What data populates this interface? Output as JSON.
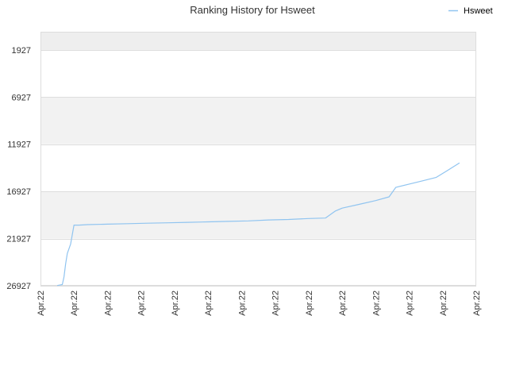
{
  "chart_data": {
    "type": "line",
    "title": "Ranking History for Hsweet",
    "xlabel": "",
    "ylabel": "",
    "y_reversed": true,
    "ylim": [
      26927,
      0
    ],
    "y_ticks": [
      1927,
      6927,
      11927,
      16927,
      21927,
      26927
    ],
    "y_tick_labels": [
      "1927",
      "6927",
      "11927",
      "16927",
      "21927",
      "26927"
    ],
    "x_tick_labels": [
      "Apr.22",
      "Apr.22",
      "Apr.22",
      "Apr.22",
      "Apr.22",
      "Apr.22",
      "Apr.22",
      "Apr.22",
      "Apr.22",
      "Apr.22",
      "Apr.22",
      "Apr.22",
      "Apr.22",
      "Apr.22"
    ],
    "grid": true,
    "legend": {
      "position": "top-right",
      "entries": [
        "Hsweet"
      ]
    },
    "series": [
      {
        "name": "Hsweet",
        "color": "#90c4f0",
        "x_index": [
          0.5,
          0.65,
          0.7,
          0.75,
          0.8,
          0.9,
          1.0,
          1.15,
          1.4,
          2.0,
          2.6,
          3.2,
          3.8,
          4.4,
          5.0,
          5.6,
          6.2,
          6.8,
          7.4,
          8.0,
          8.5,
          8.8,
          9.0,
          9.5,
          10.0,
          10.4,
          10.6,
          11.0,
          11.4,
          11.8,
          12.1,
          12.5
        ],
        "values": [
          26900,
          26800,
          26000,
          24600,
          23500,
          22500,
          20500,
          20500,
          20450,
          20400,
          20350,
          20300,
          20250,
          20200,
          20150,
          20100,
          20050,
          19950,
          19900,
          19800,
          19750,
          19000,
          18700,
          18300,
          17900,
          17500,
          16500,
          16150,
          15800,
          15450,
          14800,
          13900
        ]
      }
    ]
  }
}
